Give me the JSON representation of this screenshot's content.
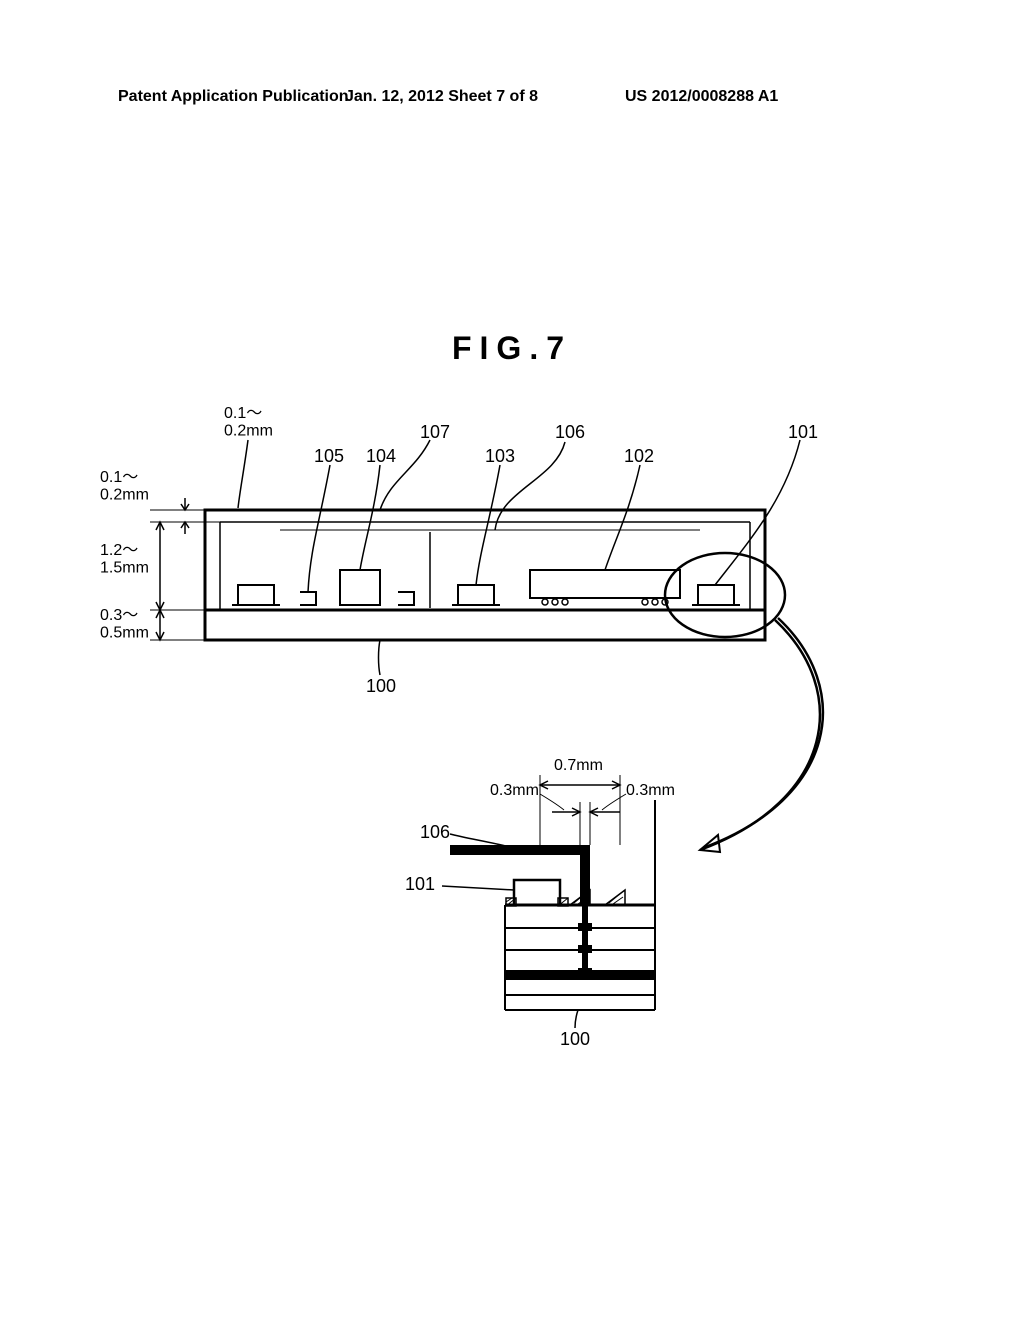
{
  "header": {
    "left": "Patent Application Publication",
    "center": "Jan. 12, 2012  Sheet 7 of 8",
    "right": "US 2012/0008288 A1"
  },
  "figure": {
    "title": "FIG.7",
    "top_view": {
      "reference_numerals": {
        "n107": "107",
        "n106": "106",
        "n105": "105",
        "n104": "104",
        "n103": "103",
        "n102": "102",
        "n101": "101",
        "n100": "100"
      },
      "dimensions": {
        "top_thickness": "0.1～\n0.2mm",
        "side_thickness": "0.1～\n0.2mm",
        "cavity_height": "1.2～\n1.5mm",
        "base_thickness": "0.3～\n0.5mm"
      }
    },
    "detail_view": {
      "reference_numerals": {
        "n106": "106",
        "n101": "101",
        "n100": "100"
      },
      "dimensions": {
        "width_0_7": "0.7mm",
        "gap_0_3_left": "0.3mm",
        "gap_0_3_right": "0.3mm"
      }
    },
    "colors": {
      "stroke": "#000000",
      "background": "#ffffff",
      "hatch": "#000000"
    },
    "line_widths": {
      "thick": 3,
      "medium": 2,
      "thin": 1
    }
  }
}
